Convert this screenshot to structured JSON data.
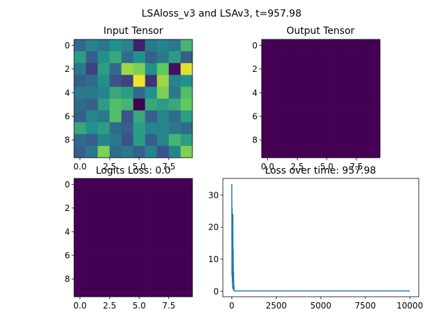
{
  "figure_title": "LSAloss_v3 and LSAv3, t=957.98",
  "colors": {
    "background": "#ffffff",
    "line": "#1f77b4",
    "dark": "#440154"
  },
  "chart_data": [
    {
      "type": "heatmap",
      "title": "Input Tensor",
      "colormap": "viridis",
      "x_ticks": [
        "0.0",
        "2.5",
        "5.0",
        "7.5"
      ],
      "y_ticks": [
        "0",
        "2",
        "4",
        "6",
        "8"
      ],
      "values": [
        [
          0.35,
          0.45,
          0.4,
          0.5,
          0.45,
          0.1,
          0.4,
          0.45,
          0.4,
          0.65
        ],
        [
          0.55,
          0.3,
          0.5,
          0.6,
          0.35,
          0.5,
          0.3,
          0.4,
          0.55,
          0.3
        ],
        [
          0.4,
          0.2,
          0.55,
          0.35,
          0.85,
          0.8,
          0.5,
          0.75,
          0.05,
          0.95
        ],
        [
          0.3,
          0.35,
          0.5,
          0.25,
          0.2,
          0.98,
          0.15,
          0.85,
          0.45,
          0.5
        ],
        [
          0.4,
          0.4,
          0.45,
          0.6,
          0.55,
          0.35,
          0.5,
          0.8,
          0.4,
          0.7
        ],
        [
          0.35,
          0.3,
          0.55,
          0.7,
          0.65,
          0.0,
          0.6,
          0.55,
          0.6,
          0.75
        ],
        [
          0.3,
          0.45,
          0.4,
          0.7,
          0.25,
          0.6,
          0.3,
          0.45,
          0.35,
          0.55
        ],
        [
          0.6,
          0.5,
          0.55,
          0.35,
          0.3,
          0.55,
          0.45,
          0.45,
          0.4,
          0.35
        ],
        [
          0.35,
          0.3,
          0.45,
          0.4,
          0.25,
          0.55,
          0.3,
          0.45,
          0.65,
          0.55
        ],
        [
          0.3,
          0.4,
          0.8,
          0.35,
          0.4,
          0.3,
          0.45,
          0.25,
          0.45,
          0.8
        ]
      ]
    },
    {
      "type": "heatmap",
      "title": "Output Tensor",
      "colormap": "viridis",
      "x_ticks": [
        "0.0",
        "2.5",
        "5.0",
        "7.5"
      ],
      "y_ticks": [
        "0",
        "2",
        "4",
        "6",
        "8"
      ],
      "uniform_value": 0.0
    },
    {
      "type": "heatmap",
      "title": "Logits Loss: 0.0",
      "colormap": "viridis",
      "x_ticks": [
        "0.0",
        "2.5",
        "5.0",
        "7.5"
      ],
      "y_ticks": [
        "0",
        "2",
        "4",
        "6",
        "8"
      ],
      "uniform_value": 0.0
    },
    {
      "type": "line",
      "title": "Loss over time: 957.98",
      "xlim": [
        -500,
        10500
      ],
      "ylim": [
        -1.7,
        35.2
      ],
      "x_ticks": [
        0,
        2500,
        5000,
        7500,
        10000
      ],
      "y_ticks": [
        0,
        10,
        20,
        30
      ],
      "series": [
        {
          "x": [
            0,
            10,
            20,
            30,
            40,
            50,
            60,
            70,
            80,
            90,
            100,
            110,
            120,
            130,
            150,
            200,
            300,
            500,
            1000,
            2500,
            5000,
            7500,
            10000
          ],
          "y": [
            33.5,
            5,
            26,
            3,
            20,
            1,
            24,
            2,
            13,
            0.5,
            6,
            0.3,
            2.0,
            0.2,
            0.1,
            0.1,
            0.1,
            0.1,
            0.1,
            0.1,
            0.1,
            0.1,
            0.1
          ]
        }
      ]
    }
  ]
}
